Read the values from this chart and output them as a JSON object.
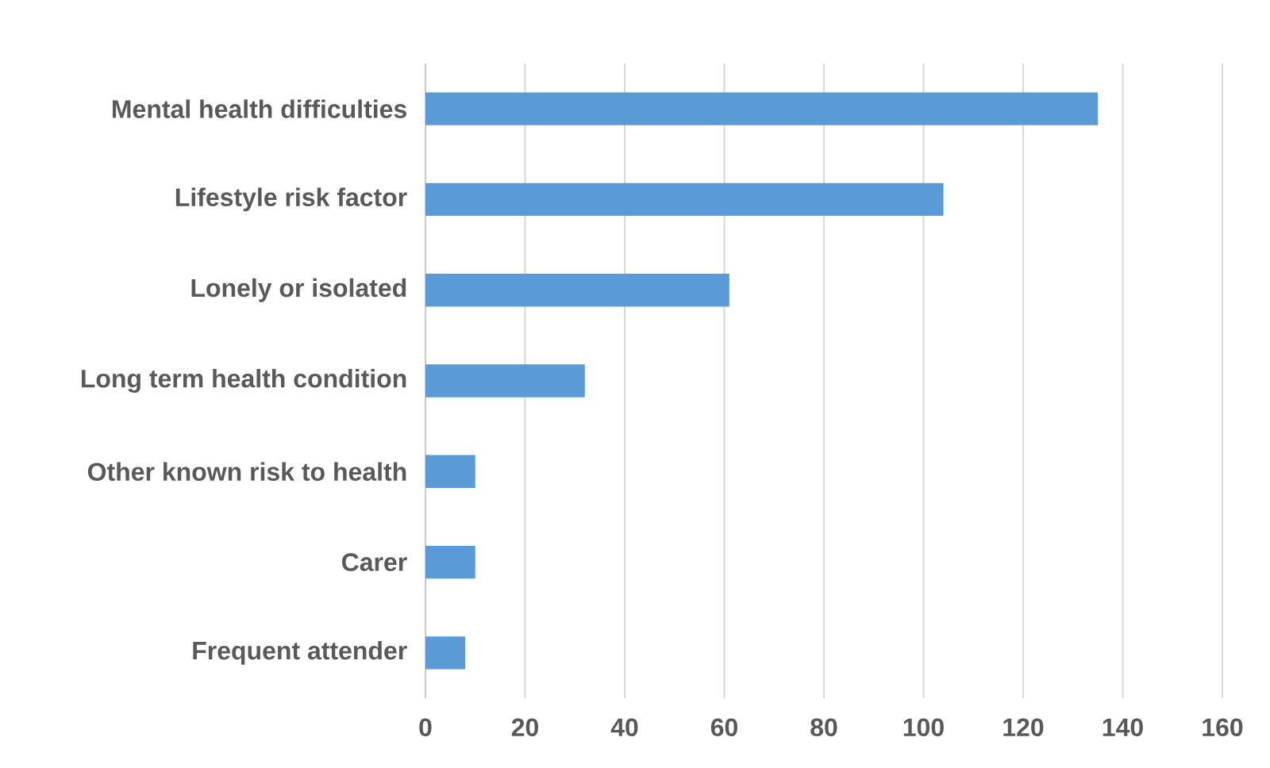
{
  "chart_data": {
    "type": "bar",
    "orientation": "horizontal",
    "categories": [
      "Mental health difficulties",
      "Lifestyle risk factor",
      "Lonely or isolated",
      "Long term health condition",
      "Other known risk to health",
      "Carer",
      "Frequent attender"
    ],
    "values": [
      135,
      104,
      61,
      32,
      10,
      10,
      8
    ],
    "color": "#5b9bd5",
    "xlim": [
      0,
      160
    ],
    "xticks": [
      0,
      20,
      40,
      60,
      80,
      100,
      120,
      140,
      160
    ],
    "grid": "x"
  }
}
